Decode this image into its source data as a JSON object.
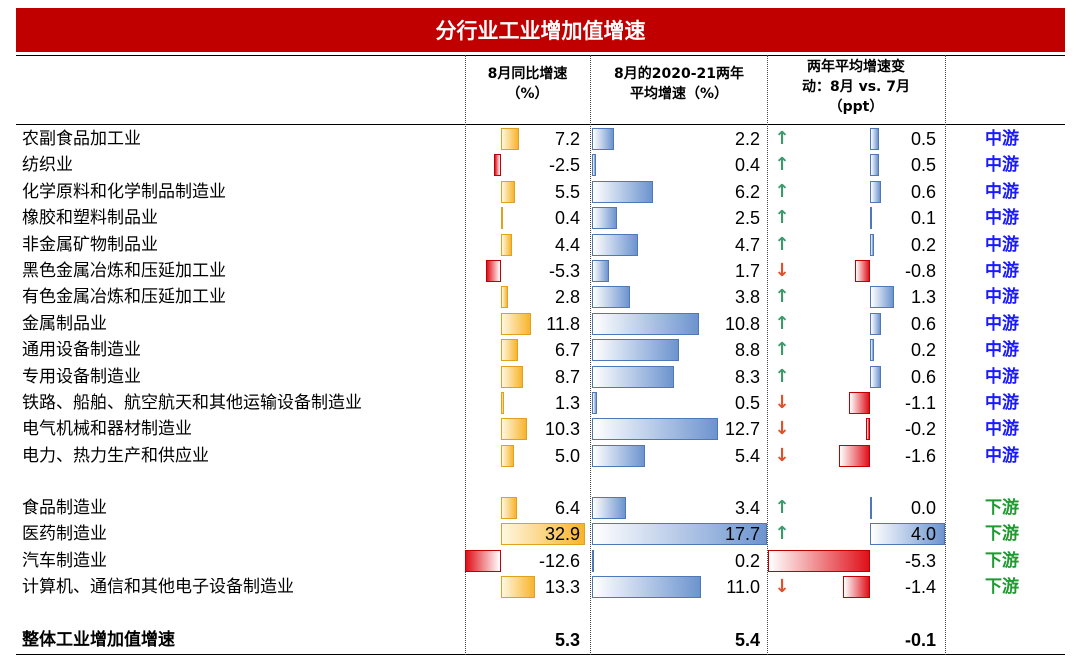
{
  "title": "分行业工业增加值增速",
  "headers": {
    "col1": [
      "8月同比增速",
      "（%）"
    ],
    "col2": [
      "8月的2020-21两年",
      "平均增速（%）"
    ],
    "col3": [
      "两年平均增速变",
      "动：8月 vs. 7月",
      "（ppt）"
    ]
  },
  "rows": [
    {
      "name": "农副食品加工业",
      "yoy": "7.2",
      "avg": "2.2",
      "dir": "up",
      "chg": "0.5",
      "cls": "中游"
    },
    {
      "name": "纺织业",
      "yoy": "-2.5",
      "avg": "0.4",
      "dir": "up",
      "chg": "0.5",
      "cls": "中游"
    },
    {
      "name": "化学原料和化学制品制造业",
      "yoy": "5.5",
      "avg": "6.2",
      "dir": "up",
      "chg": "0.6",
      "cls": "中游"
    },
    {
      "name": "橡胶和塑料制品业",
      "yoy": "0.4",
      "avg": "2.5",
      "dir": "up",
      "chg": "0.1",
      "cls": "中游"
    },
    {
      "name": "非金属矿物制品业",
      "yoy": "4.4",
      "avg": "4.7",
      "dir": "up",
      "chg": "0.2",
      "cls": "中游"
    },
    {
      "name": "黑色金属冶炼和压延加工业",
      "yoy": "-5.3",
      "avg": "1.7",
      "dir": "down",
      "chg": "-0.8",
      "cls": "中游"
    },
    {
      "name": "有色金属冶炼和压延加工业",
      "yoy": "2.8",
      "avg": "3.8",
      "dir": "up",
      "chg": "1.3",
      "cls": "中游"
    },
    {
      "name": "金属制品业",
      "yoy": "11.8",
      "avg": "10.8",
      "dir": "up",
      "chg": "0.6",
      "cls": "中游"
    },
    {
      "name": "通用设备制造业",
      "yoy": "6.7",
      "avg": "8.8",
      "dir": "up",
      "chg": "0.2",
      "cls": "中游"
    },
    {
      "name": "专用设备制造业",
      "yoy": "8.7",
      "avg": "8.3",
      "dir": "up",
      "chg": "0.6",
      "cls": "中游"
    },
    {
      "name": "铁路、船舶、航空航天和其他运输设备制造业",
      "yoy": "1.3",
      "avg": "0.5",
      "dir": "down",
      "chg": "-1.1",
      "cls": "中游"
    },
    {
      "name": "电气机械和器材制造业",
      "yoy": "10.3",
      "avg": "12.7",
      "dir": "down",
      "chg": "-0.2",
      "cls": "中游"
    },
    {
      "name": "电力、热力生产和供应业",
      "yoy": "5.0",
      "avg": "5.4",
      "dir": "down",
      "chg": "-1.6",
      "cls": "中游"
    },
    {
      "name": "食品制造业",
      "yoy": "6.4",
      "avg": "3.4",
      "dir": "up",
      "chg": "0.0",
      "cls": "下游"
    },
    {
      "name": "医药制造业",
      "yoy": "32.9",
      "avg": "17.7",
      "dir": "up",
      "chg": "4.0",
      "cls": "下游"
    },
    {
      "name": "汽车制造业",
      "yoy": "-12.6",
      "avg": "0.2",
      "dir": "down",
      "chg": "-5.3",
      "cls": "下游"
    },
    {
      "name": "计算机、通信和其他电子设备制造业",
      "yoy": "13.3",
      "avg": "11.0",
      "dir": "down",
      "chg": "-1.4",
      "cls": "下游"
    }
  ],
  "total": {
    "name": "整体工业增加值增速",
    "yoy": "5.3",
    "avg": "5.4",
    "chg": "-0.1"
  },
  "colors": {
    "mid": "#1a1aff",
    "down": "#1e9a30"
  }
}
